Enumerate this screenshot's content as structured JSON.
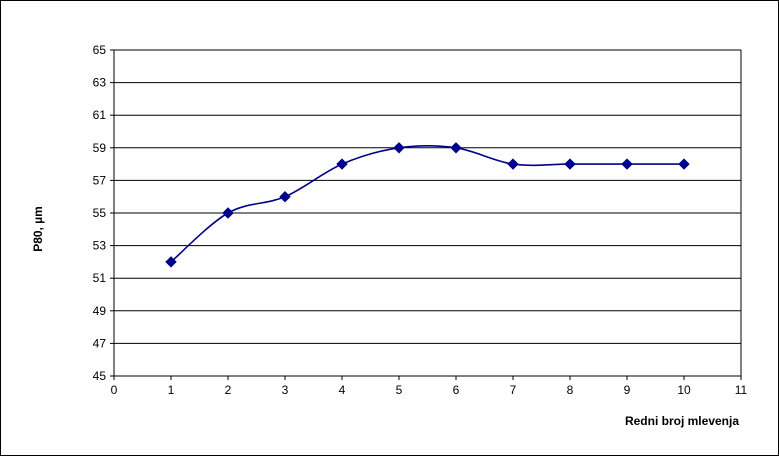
{
  "chart_data": {
    "type": "line",
    "title": "",
    "xlabel": "Redni broj mlevenja",
    "ylabel": "P80, µm",
    "xlim": [
      0,
      11
    ],
    "ylim": [
      45,
      65
    ],
    "x_ticks": [
      0,
      1,
      2,
      3,
      4,
      5,
      6,
      7,
      8,
      9,
      10,
      11
    ],
    "y_ticks": [
      45,
      47,
      49,
      51,
      53,
      55,
      57,
      59,
      61,
      63,
      65
    ],
    "grid": "horizontal",
    "smoothed": true,
    "marker": "diamond",
    "series": [
      {
        "color": "#00008B",
        "x": [
          1,
          2,
          3,
          4,
          5,
          6,
          7,
          8,
          9,
          10
        ],
        "values": [
          52,
          55,
          56,
          58,
          59,
          59,
          58,
          58,
          58,
          58
        ]
      }
    ]
  }
}
